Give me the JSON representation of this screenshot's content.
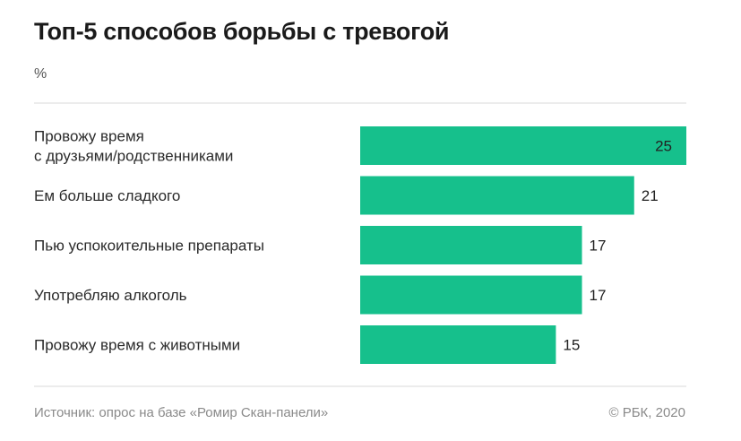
{
  "title": "Топ-5 способов борьбы с тревогой",
  "unit": "%",
  "source": "Источник: опрос на базе «Ромир Скан-панели»",
  "copyright": "© РБК, 2020",
  "colors": {
    "bar": "#16c08c",
    "gridline": "#d9d9d9",
    "label": "#2a2a2a"
  },
  "chart_data": {
    "type": "bar",
    "orientation": "horizontal",
    "categories": [
      [
        "Провожу время",
        "с друзьями/родственниками"
      ],
      [
        "Ем больше сладкого"
      ],
      [
        "Пью успокоительные препараты"
      ],
      [
        "Употребляю алкоголь"
      ],
      [
        "Провожу время с животными"
      ]
    ],
    "values": [
      25,
      21,
      17,
      17,
      15
    ],
    "data_labels": [
      "25",
      "21",
      "17",
      "17",
      "15"
    ],
    "xlim": [
      0,
      25
    ]
  }
}
